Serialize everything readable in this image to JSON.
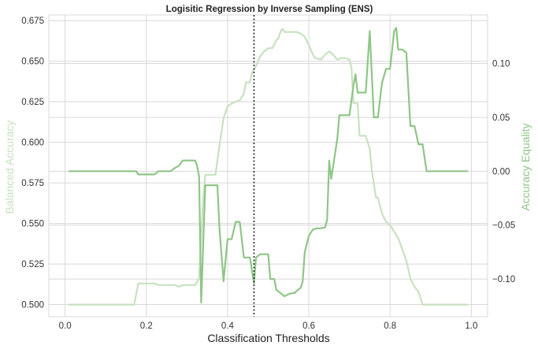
{
  "chart_data": {
    "type": "line",
    "title": "Logisitic Regression by Inverse Sampling (ENS)",
    "xlabel": "Classification Thresholds",
    "ylabel_left": "Balanced Accuracy",
    "ylabel_right": "Accuracy Equality",
    "xlim": [
      -0.04,
      1.04
    ],
    "ylim_left": [
      0.4925,
      0.6785
    ],
    "ylim_right": [
      -0.135,
      0.145
    ],
    "x_ticks": [
      0.0,
      0.2,
      0.4,
      0.6,
      0.8,
      1.0
    ],
    "x_tick_labels": [
      "0.0",
      "0.2",
      "0.4",
      "0.6",
      "0.8",
      "1.0"
    ],
    "y_left_ticks": [
      0.5,
      0.525,
      0.55,
      0.575,
      0.6,
      0.625,
      0.65,
      0.675
    ],
    "y_left_tick_labels": [
      "0.500",
      "0.525",
      "0.550",
      "0.575",
      "0.600",
      "0.625",
      "0.650",
      "0.675"
    ],
    "y_right_ticks": [
      -0.1,
      -0.05,
      0.0,
      0.05,
      0.1
    ],
    "y_right_tick_labels": [
      "−0.10",
      "−0.05",
      "0.00",
      "0.05",
      "0.10"
    ],
    "grid": true,
    "threshold_line": 0.465,
    "colors": {
      "balanced_accuracy": "#c7e2c0",
      "accuracy_equality": "#8fc587",
      "threshold": "#222222",
      "grid": "#d8d8d8",
      "left_axis_label": "#c7e2c0",
      "right_axis_label": "#8fc587"
    },
    "series": [
      {
        "axis": "left",
        "points": [
          [
            0.01,
            0.5
          ],
          [
            0.05,
            0.5
          ],
          [
            0.1,
            0.5
          ],
          [
            0.15,
            0.5
          ],
          [
            0.17,
            0.5
          ],
          [
            0.18,
            0.513
          ],
          [
            0.2,
            0.513
          ],
          [
            0.22,
            0.513
          ],
          [
            0.23,
            0.512
          ],
          [
            0.25,
            0.512
          ],
          [
            0.27,
            0.512
          ],
          [
            0.28,
            0.511
          ],
          [
            0.29,
            0.512
          ],
          [
            0.32,
            0.512
          ],
          [
            0.33,
            0.516
          ],
          [
            0.34,
            0.566
          ],
          [
            0.345,
            0.58
          ],
          [
            0.36,
            0.58
          ],
          [
            0.37,
            0.58
          ],
          [
            0.38,
            0.598
          ],
          [
            0.39,
            0.615
          ],
          [
            0.4,
            0.622
          ],
          [
            0.41,
            0.624
          ],
          [
            0.42,
            0.625
          ],
          [
            0.43,
            0.626
          ],
          [
            0.44,
            0.63
          ],
          [
            0.445,
            0.637
          ],
          [
            0.455,
            0.637
          ],
          [
            0.46,
            0.643
          ],
          [
            0.47,
            0.647
          ],
          [
            0.48,
            0.653
          ],
          [
            0.49,
            0.656
          ],
          [
            0.5,
            0.658
          ],
          [
            0.51,
            0.658
          ],
          [
            0.52,
            0.663
          ],
          [
            0.525,
            0.664
          ],
          [
            0.53,
            0.668
          ],
          [
            0.535,
            0.67
          ],
          [
            0.54,
            0.668
          ],
          [
            0.55,
            0.668
          ],
          [
            0.56,
            0.668
          ],
          [
            0.57,
            0.668
          ],
          [
            0.58,
            0.667
          ],
          [
            0.59,
            0.665
          ],
          [
            0.6,
            0.66
          ],
          [
            0.61,
            0.654
          ],
          [
            0.615,
            0.652
          ],
          [
            0.63,
            0.651
          ],
          [
            0.64,
            0.654
          ],
          [
            0.65,
            0.656
          ],
          [
            0.66,
            0.654
          ],
          [
            0.67,
            0.651
          ],
          [
            0.68,
            0.652
          ],
          [
            0.69,
            0.652
          ],
          [
            0.7,
            0.651
          ],
          [
            0.705,
            0.646
          ],
          [
            0.71,
            0.624
          ],
          [
            0.72,
            0.624
          ],
          [
            0.725,
            0.604
          ],
          [
            0.74,
            0.604
          ],
          [
            0.75,
            0.596
          ],
          [
            0.755,
            0.583
          ],
          [
            0.765,
            0.566
          ],
          [
            0.77,
            0.566
          ],
          [
            0.78,
            0.556
          ],
          [
            0.79,
            0.551
          ],
          [
            0.8,
            0.549
          ],
          [
            0.81,
            0.545
          ],
          [
            0.82,
            0.541
          ],
          [
            0.83,
            0.534
          ],
          [
            0.84,
            0.527
          ],
          [
            0.85,
            0.516
          ],
          [
            0.86,
            0.511
          ],
          [
            0.87,
            0.508
          ],
          [
            0.875,
            0.504
          ],
          [
            0.88,
            0.5
          ],
          [
            0.9,
            0.5
          ],
          [
            0.95,
            0.5
          ],
          [
            0.99,
            0.5
          ]
        ]
      },
      {
        "axis": "right",
        "points": [
          [
            0.01,
            0.0
          ],
          [
            0.05,
            0.0
          ],
          [
            0.1,
            0.0
          ],
          [
            0.15,
            0.0
          ],
          [
            0.175,
            0.0
          ],
          [
            0.18,
            -0.003
          ],
          [
            0.2,
            -0.003
          ],
          [
            0.22,
            -0.003
          ],
          [
            0.23,
            0.0
          ],
          [
            0.26,
            0.0
          ],
          [
            0.27,
            0.003
          ],
          [
            0.28,
            0.005
          ],
          [
            0.29,
            0.01
          ],
          [
            0.3,
            0.01
          ],
          [
            0.32,
            0.01
          ],
          [
            0.325,
            0.005
          ],
          [
            0.33,
            -0.005
          ],
          [
            0.335,
            -0.122
          ],
          [
            0.345,
            -0.013
          ],
          [
            0.36,
            -0.013
          ],
          [
            0.375,
            -0.013
          ],
          [
            0.38,
            -0.053
          ],
          [
            0.39,
            -0.102
          ],
          [
            0.4,
            -0.063
          ],
          [
            0.41,
            -0.063
          ],
          [
            0.42,
            -0.047
          ],
          [
            0.43,
            -0.047
          ],
          [
            0.44,
            -0.08
          ],
          [
            0.445,
            -0.08
          ],
          [
            0.455,
            -0.08
          ],
          [
            0.465,
            -0.104
          ],
          [
            0.47,
            -0.08
          ],
          [
            0.48,
            -0.077
          ],
          [
            0.49,
            -0.077
          ],
          [
            0.5,
            -0.077
          ],
          [
            0.505,
            -0.1
          ],
          [
            0.515,
            -0.1
          ],
          [
            0.52,
            -0.11
          ],
          [
            0.53,
            -0.113
          ],
          [
            0.54,
            -0.116
          ],
          [
            0.55,
            -0.114
          ],
          [
            0.56,
            -0.113
          ],
          [
            0.565,
            -0.113
          ],
          [
            0.57,
            -0.111
          ],
          [
            0.58,
            -0.108
          ],
          [
            0.585,
            -0.102
          ],
          [
            0.59,
            -0.075
          ],
          [
            0.6,
            -0.06
          ],
          [
            0.61,
            -0.054
          ],
          [
            0.62,
            -0.053
          ],
          [
            0.63,
            -0.053
          ],
          [
            0.64,
            -0.052
          ],
          [
            0.645,
            -0.045
          ],
          [
            0.65,
            0.01
          ],
          [
            0.655,
            -0.007
          ],
          [
            0.66,
            0.005
          ],
          [
            0.67,
            0.03
          ],
          [
            0.675,
            0.052
          ],
          [
            0.69,
            0.052
          ],
          [
            0.7,
            0.052
          ],
          [
            0.71,
            0.08
          ],
          [
            0.715,
            0.09
          ],
          [
            0.72,
            0.073
          ],
          [
            0.73,
            0.073
          ],
          [
            0.74,
            0.073
          ],
          [
            0.75,
            0.13
          ],
          [
            0.76,
            0.05
          ],
          [
            0.77,
            0.05
          ],
          [
            0.78,
            0.082
          ],
          [
            0.79,
            0.095
          ],
          [
            0.8,
            0.095
          ],
          [
            0.81,
            0.13
          ],
          [
            0.815,
            0.133
          ],
          [
            0.82,
            0.113
          ],
          [
            0.83,
            0.113
          ],
          [
            0.84,
            0.11
          ],
          [
            0.85,
            0.042
          ],
          [
            0.86,
            0.042
          ],
          [
            0.87,
            0.025
          ],
          [
            0.88,
            0.025
          ],
          [
            0.89,
            0.0
          ],
          [
            0.9,
            0.0
          ],
          [
            0.95,
            0.0
          ],
          [
            0.99,
            0.0
          ]
        ]
      }
    ]
  }
}
